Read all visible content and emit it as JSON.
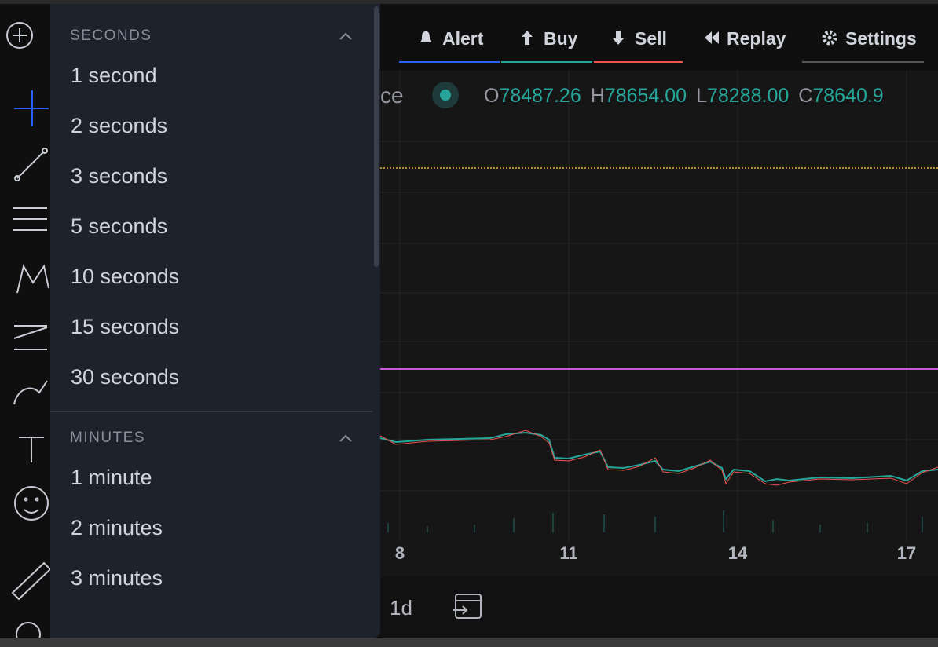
{
  "toolbar": {
    "buttons": [
      "Alert",
      "Buy",
      "Sell",
      "Replay",
      "Settings"
    ]
  },
  "legend": {
    "symbol_fragment": "ce",
    "ohlc": [
      {
        "label": "O",
        "value": "78487.26"
      },
      {
        "label": "H",
        "value": "78654.00"
      },
      {
        "label": "L",
        "value": "78288.00"
      },
      {
        "label": "C",
        "value": "78640.9"
      }
    ]
  },
  "chart": {
    "x_labels": [
      "8",
      "11",
      "14",
      "17"
    ]
  },
  "bottom_bar": {
    "range": "1d"
  },
  "dropdown": {
    "sections": [
      {
        "title": "SECONDS",
        "items": [
          "1 second",
          "2 seconds",
          "3 seconds",
          "5 seconds",
          "10 seconds",
          "15 seconds",
          "30 seconds"
        ]
      },
      {
        "title": "MINUTES",
        "items": [
          "1 minute",
          "2 minutes",
          "3 minutes"
        ]
      }
    ]
  }
}
